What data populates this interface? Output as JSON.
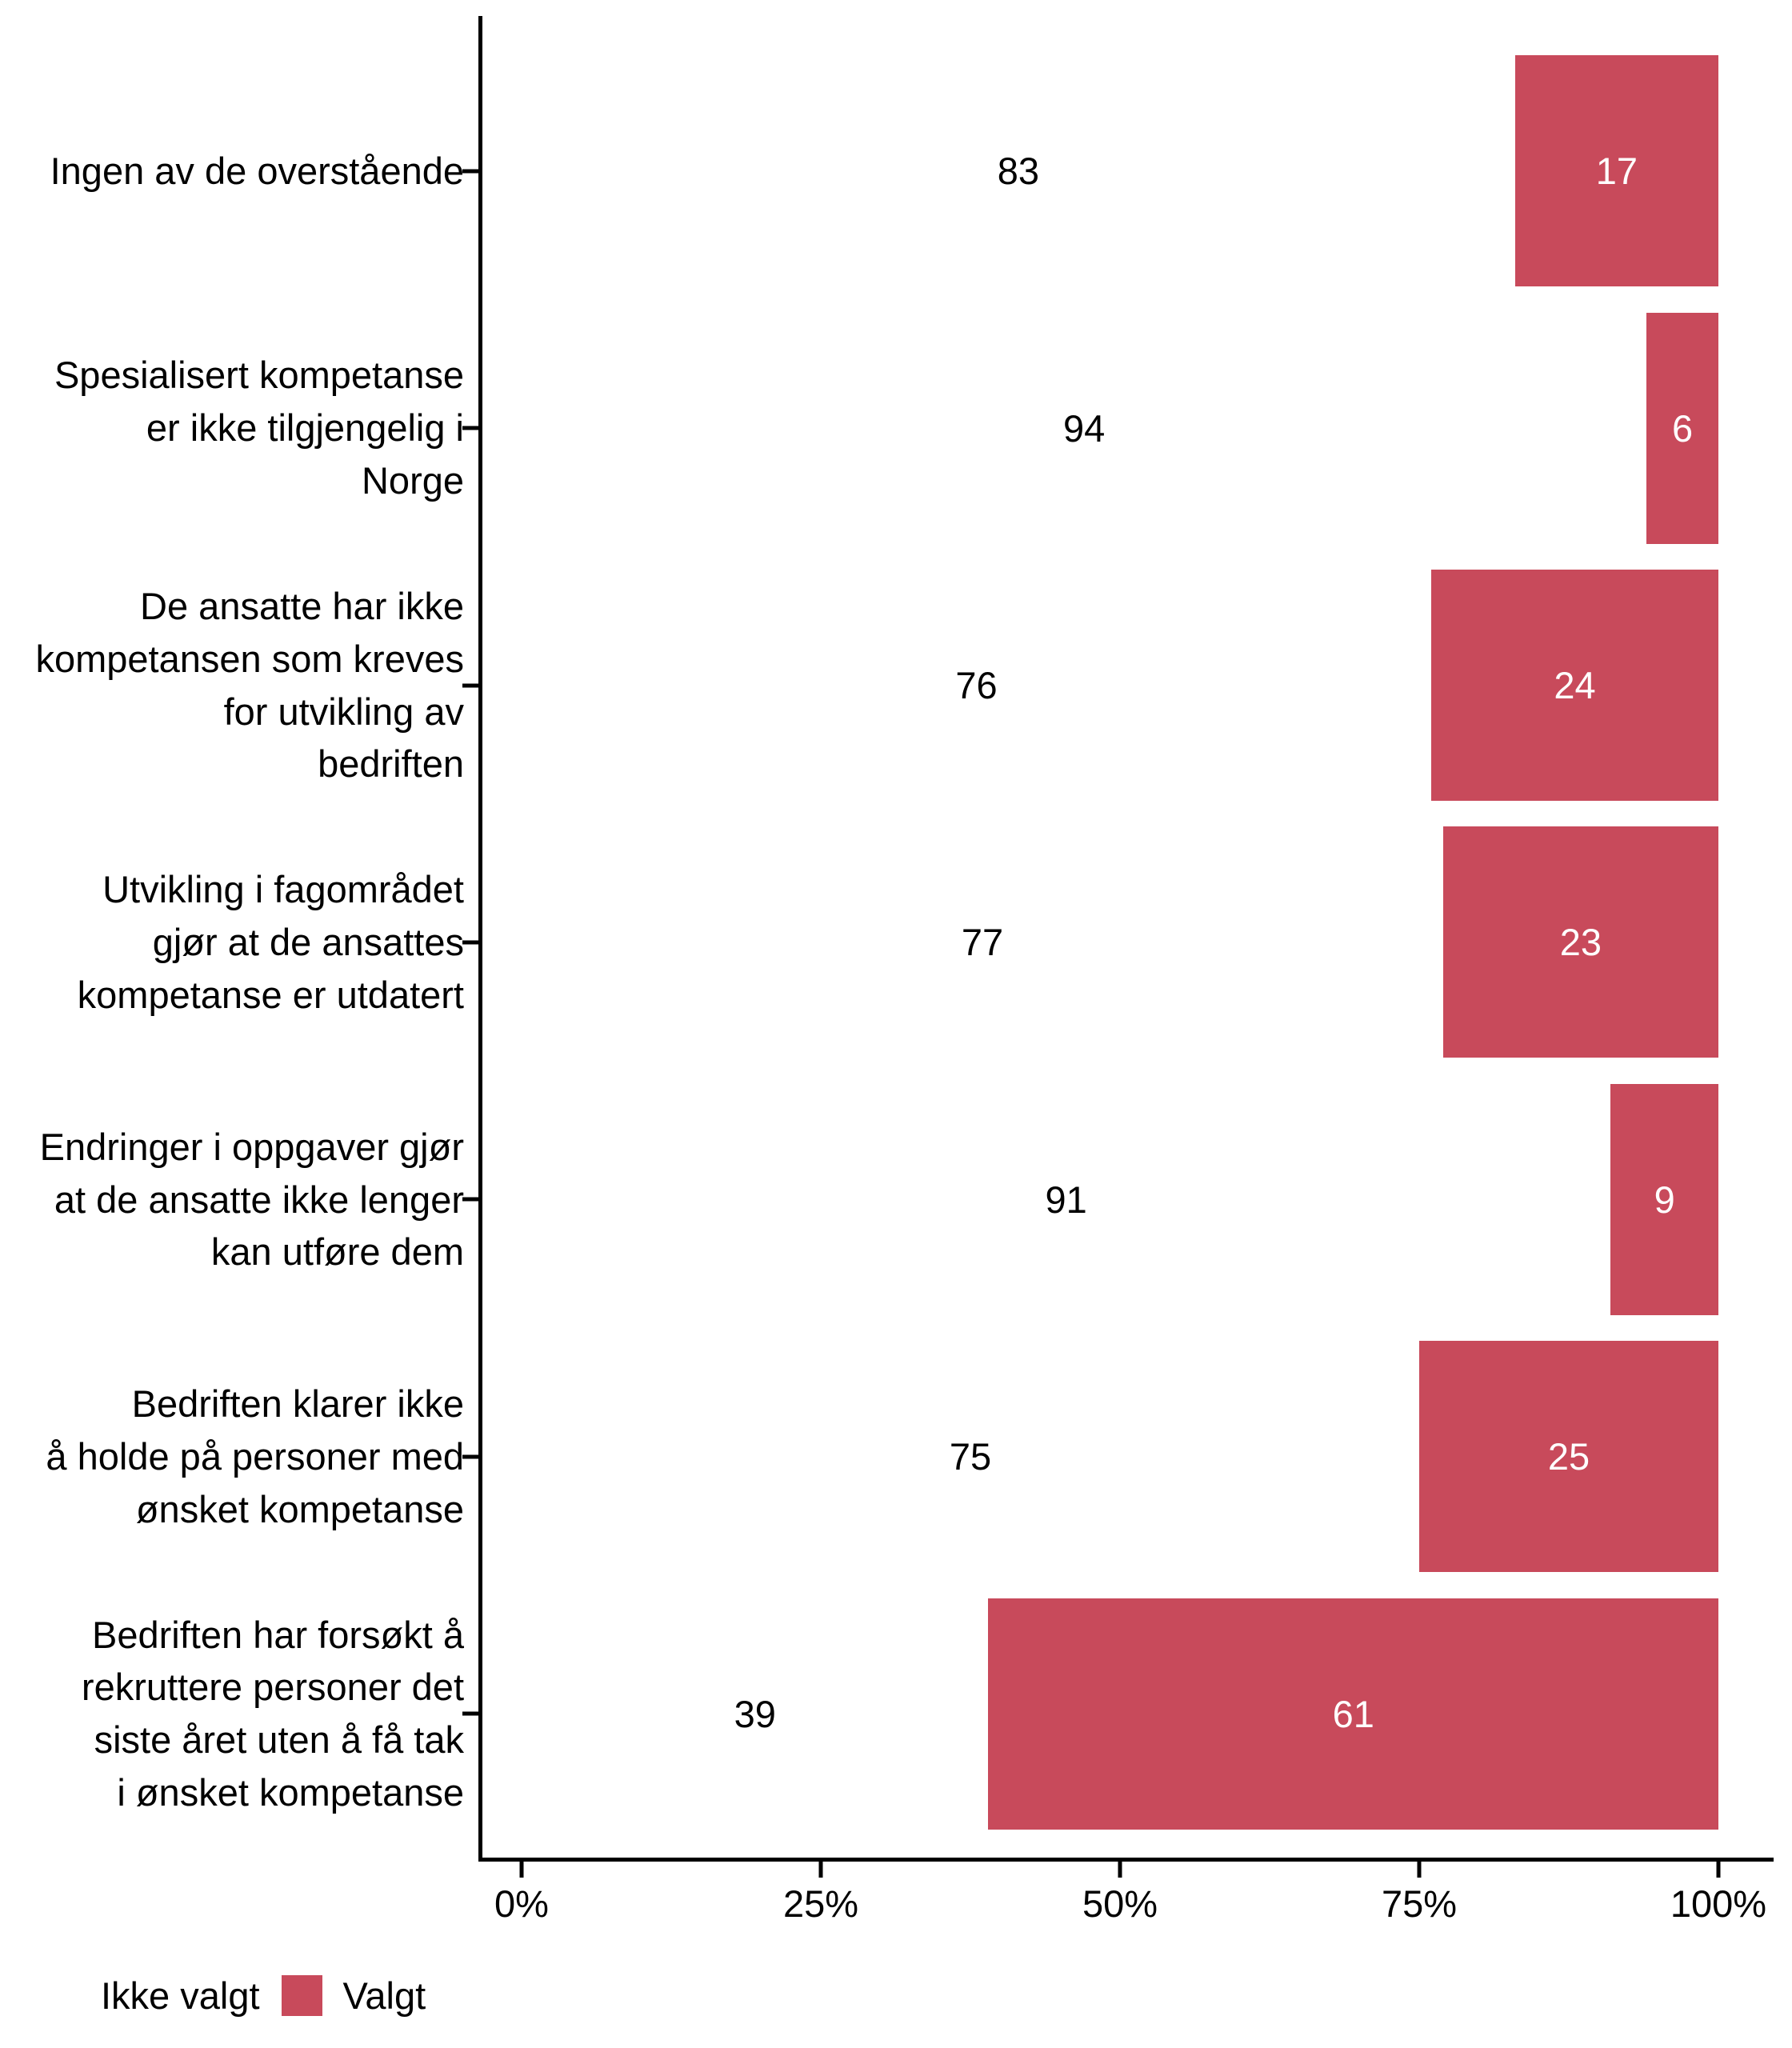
{
  "chart_data": {
    "type": "bar",
    "orientation": "horizontal",
    "stacked": true,
    "unit": "percent",
    "title": "",
    "xlabel": "",
    "ylabel": "",
    "grid": false,
    "axis_color": "#000000",
    "categories_order": "top-to-bottom",
    "categories": [
      "Ingen av de overstående",
      "Spesialisert kompetanse\ner ikke tilgjengelig i\nNorge",
      "De ansatte har ikke\nkompetansen som kreves\nfor utvikling av\nbedriften",
      "Utvikling i fagområdet\ngjør at de ansattes\nkompetanse er utdatert",
      "Endringer i oppgaver gjør\nat de ansatte ikke lenger\nkan utføre dem",
      "Bedriften klarer ikke\nå holde på personer med\nønsket kompetanse",
      "Bedriften har forsøkt å\nrekruttere personer det\nsiste året uten å få tak\ni ønsket kompetanse"
    ],
    "series": [
      {
        "name": "Ikke valgt",
        "color": "#FFFFFF",
        "text_color": "#000000",
        "values": [
          83,
          94,
          76,
          77,
          91,
          75,
          39
        ]
      },
      {
        "name": "Valgt",
        "color": "#C84A5B",
        "text_color": "#FFFFFF",
        "values": [
          17,
          6,
          24,
          23,
          9,
          25,
          61
        ]
      }
    ],
    "x_axis": {
      "ticks": [
        "0%",
        "25%",
        "50%",
        "75%",
        "100%"
      ],
      "range": [
        0,
        100
      ]
    },
    "legend": {
      "position": "bottom-left",
      "entries": [
        "Ikke valgt",
        "Valgt"
      ]
    }
  }
}
